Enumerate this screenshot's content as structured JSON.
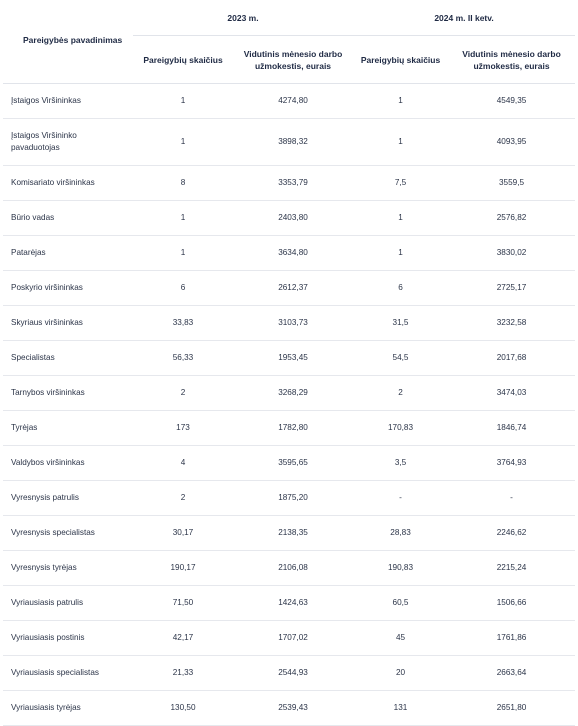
{
  "header": {
    "position_name": "Pareigybės pavadinimas",
    "period_2023": "2023 m.",
    "period_2024": "2024 m. II ketv.",
    "count_label": "Pareigybių skaičius",
    "salary_label": "Vidutinis mėnesio darbo užmokestis, eurais"
  },
  "rows": [
    {
      "name": "Įstaigos Viršininkas",
      "count_2023": "1",
      "salary_2023": "4274,80",
      "count_2024": "1",
      "salary_2024": "4549,35"
    },
    {
      "name": "Įstaigos Viršininko pavaduotojas",
      "count_2023": "1",
      "salary_2023": "3898,32",
      "count_2024": "1",
      "salary_2024": "4093,95"
    },
    {
      "name": "Komisariato viršininkas",
      "count_2023": "8",
      "salary_2023": "3353,79",
      "count_2024": "7,5",
      "salary_2024": "3559,5"
    },
    {
      "name": "Būrio vadas",
      "count_2023": "1",
      "salary_2023": "2403,80",
      "count_2024": "1",
      "salary_2024": "2576,82"
    },
    {
      "name": "Patarėjas",
      "count_2023": "1",
      "salary_2023": "3634,80",
      "count_2024": "1",
      "salary_2024": "3830,02"
    },
    {
      "name": "Poskyrio viršininkas",
      "count_2023": "6",
      "salary_2023": "2612,37",
      "count_2024": "6",
      "salary_2024": "2725,17"
    },
    {
      "name": "Skyriaus viršininkas",
      "count_2023": "33,83",
      "salary_2023": "3103,73",
      "count_2024": "31,5",
      "salary_2024": "3232,58"
    },
    {
      "name": "Specialistas",
      "count_2023": "56,33",
      "salary_2023": "1953,45",
      "count_2024": "54,5",
      "salary_2024": "2017,68"
    },
    {
      "name": "Tarnybos viršininkas",
      "count_2023": "2",
      "salary_2023": "3268,29",
      "count_2024": "2",
      "salary_2024": "3474,03"
    },
    {
      "name": "Tyrėjas",
      "count_2023": "173",
      "salary_2023": "1782,80",
      "count_2024": "170,83",
      "salary_2024": "1846,74"
    },
    {
      "name": "Valdybos viršininkas",
      "count_2023": "4",
      "salary_2023": "3595,65",
      "count_2024": "3,5",
      "salary_2024": "3764,93"
    },
    {
      "name": "Vyresnysis patrulis",
      "count_2023": "2",
      "salary_2023": "1875,20",
      "count_2024": "-",
      "salary_2024": "-"
    },
    {
      "name": "Vyresnysis specialistas",
      "count_2023": "30,17",
      "salary_2023": "2138,35",
      "count_2024": "28,83",
      "salary_2024": "2246,62"
    },
    {
      "name": "Vyresnysis tyrėjas",
      "count_2023": "190,17",
      "salary_2023": "2106,08",
      "count_2024": "190,83",
      "salary_2024": "2215,24"
    },
    {
      "name": "Vyriausiasis patrulis",
      "count_2023": "71,50",
      "salary_2023": "1424,63",
      "count_2024": "60,5",
      "salary_2024": "1506,66"
    },
    {
      "name": "Vyriausiasis postinis",
      "count_2023": "42,17",
      "salary_2023": "1707,02",
      "count_2024": "45",
      "salary_2024": "1761,86"
    },
    {
      "name": "Vyriausiasis specialistas",
      "count_2023": "21,33",
      "salary_2023": "2544,93",
      "count_2024": "20",
      "salary_2024": "2663,64"
    },
    {
      "name": "Vyriausiasis tyrėjas",
      "count_2023": "130,50",
      "salary_2023": "2539,43",
      "count_2024": "131",
      "salary_2024": "2651,80"
    }
  ]
}
